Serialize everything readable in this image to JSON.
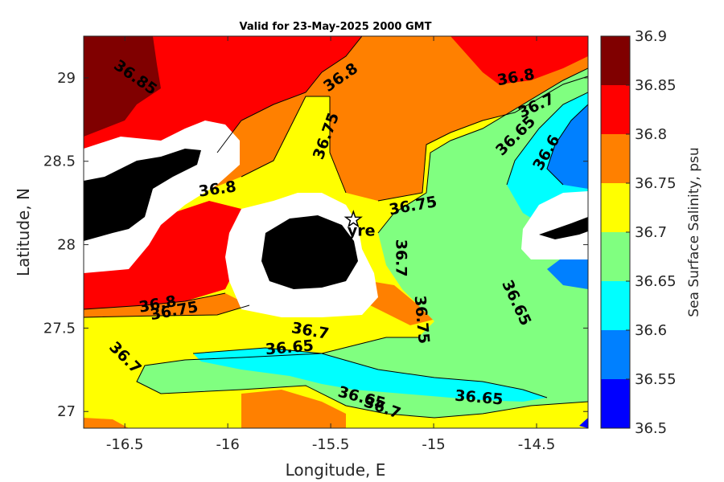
{
  "chart_data": {
    "type": "heatmap",
    "subtype": "filled-contour map",
    "title": "Valid for 23-May-2025 2000 GMT",
    "xlabel": "Longitude, E",
    "ylabel": "Latitude, N",
    "colorbar_label": "Sea Surface Salinity, psu",
    "xlim": [
      -16.7,
      -14.25
    ],
    "ylim": [
      26.9,
      29.25
    ],
    "x_ticks": [
      -16.5,
      -16,
      -15.5,
      -15,
      -14.5
    ],
    "x_tick_labels": [
      "-16.5",
      "-16",
      "-15.5",
      "-15",
      "-14.5"
    ],
    "y_ticks": [
      27,
      27.5,
      28,
      28.5,
      29
    ],
    "y_tick_labels": [
      "27",
      "27.5",
      "28",
      "28.5",
      "29"
    ],
    "colorbar": {
      "levels": [
        36.5,
        36.55,
        36.6,
        36.65,
        36.7,
        36.75,
        36.8,
        36.85,
        36.9
      ],
      "level_labels": [
        "36.5",
        "36.55",
        "36.6",
        "36.65",
        "36.7",
        "36.75",
        "36.8",
        "36.85",
        "36.9"
      ],
      "colors": [
        "#0000ff",
        "#0080ff",
        "#00ffff",
        "#80ff80",
        "#ffff00",
        "#ff8000",
        "#ff0000",
        "#800000"
      ]
    },
    "contour_labels": [
      {
        "text": "36.85",
        "lon": -16.45,
        "lat": 29.0,
        "angle": 35
      },
      {
        "text": "36.8",
        "lon": -15.45,
        "lat": 29.0,
        "angle": -35
      },
      {
        "text": "36.8",
        "lon": -14.6,
        "lat": 29.0,
        "angle": -10
      },
      {
        "text": "36.75",
        "lon": -15.52,
        "lat": 28.65,
        "angle": -70
      },
      {
        "text": "36.7",
        "lon": -14.5,
        "lat": 28.83,
        "angle": -25
      },
      {
        "text": "36.65",
        "lon": -14.6,
        "lat": 28.65,
        "angle": -45
      },
      {
        "text": "36.6",
        "lon": -14.45,
        "lat": 28.55,
        "angle": -60
      },
      {
        "text": "36.8",
        "lon": -16.05,
        "lat": 28.33,
        "angle": -8
      },
      {
        "text": "36.75",
        "lon": -15.1,
        "lat": 28.23,
        "angle": -10
      },
      {
        "text": "36.7",
        "lon": -15.16,
        "lat": 27.92,
        "angle": 90
      },
      {
        "text": "36.75",
        "lon": -15.06,
        "lat": 27.55,
        "angle": 85
      },
      {
        "text": "36.65",
        "lon": -14.6,
        "lat": 27.65,
        "angle": 65
      },
      {
        "text": "36.8",
        "lon": -16.34,
        "lat": 27.64,
        "angle": -10
      },
      {
        "text": "36.75",
        "lon": -16.26,
        "lat": 27.6,
        "angle": -10
      },
      {
        "text": "36.7",
        "lon": -15.6,
        "lat": 27.48,
        "angle": 10
      },
      {
        "text": "36.65",
        "lon": -15.7,
        "lat": 27.38,
        "angle": -5
      },
      {
        "text": "36.7",
        "lon": -16.5,
        "lat": 27.32,
        "angle": 45
      },
      {
        "text": "36.65",
        "lon": -15.35,
        "lat": 27.08,
        "angle": 15
      },
      {
        "text": "36.7",
        "lon": -15.25,
        "lat": 27.02,
        "angle": 20
      },
      {
        "text": "36.65",
        "lon": -14.78,
        "lat": 27.08,
        "angle": 5
      }
    ],
    "markers": [
      {
        "label": "yre",
        "symbol": "star",
        "lon": -15.39,
        "lat": 28.15
      }
    ],
    "land_masks": [
      "Gran Canaria (center-left)",
      "Tenerife (left edge)",
      "Fuerteventura (right edge)"
    ]
  }
}
